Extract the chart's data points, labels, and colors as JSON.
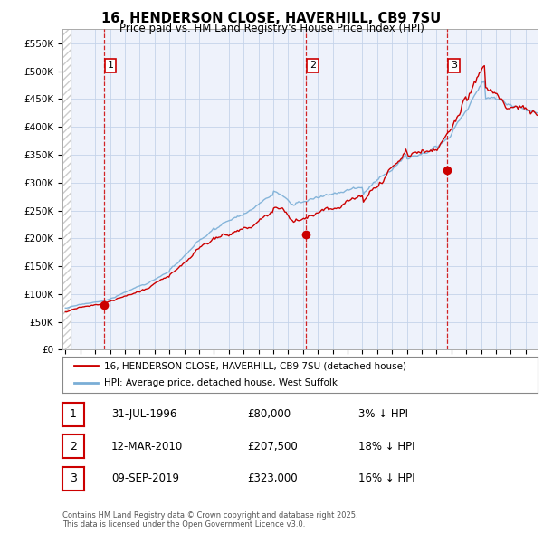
{
  "title": "16, HENDERSON CLOSE, HAVERHILL, CB9 7SU",
  "subtitle": "Price paid vs. HM Land Registry's House Price Index (HPI)",
  "legend_label_red": "16, HENDERSON CLOSE, HAVERHILL, CB9 7SU (detached house)",
  "legend_label_blue": "HPI: Average price, detached house, West Suffolk",
  "footer_line1": "Contains HM Land Registry data © Crown copyright and database right 2025.",
  "footer_line2": "This data is licensed under the Open Government Licence v3.0.",
  "sale_points": [
    {
      "label": "1",
      "date_x": 1996.58,
      "price": 80000
    },
    {
      "label": "2",
      "date_x": 2010.19,
      "price": 207500
    },
    {
      "label": "3",
      "date_x": 2019.69,
      "price": 323000
    }
  ],
  "ylim": [
    0,
    575000
  ],
  "xlim": [
    1993.8,
    2025.8
  ],
  "yticks": [
    0,
    50000,
    100000,
    150000,
    200000,
    250000,
    300000,
    350000,
    400000,
    450000,
    500000,
    550000
  ],
  "ytick_labels": [
    "£0",
    "£50K",
    "£100K",
    "£150K",
    "£200K",
    "£250K",
    "£300K",
    "£350K",
    "£400K",
    "£450K",
    "£500K",
    "£550K"
  ],
  "bg_color": "#eef2fb",
  "grid_color": "#c5d3ea",
  "red_line_color": "#cc0000",
  "blue_line_color": "#7aaed6",
  "dot_color_red": "#cc0000",
  "dashed_line_color": "#cc0000",
  "table_rows": [
    {
      "num": "1",
      "date": "31-JUL-1996",
      "amount": "£80,000",
      "pct": "3% ↓ HPI"
    },
    {
      "num": "2",
      "date": "12-MAR-2010",
      "amount": "£207,500",
      "pct": "18% ↓ HPI"
    },
    {
      "num": "3",
      "date": "09-SEP-2019",
      "amount": "£323,000",
      "pct": "16% ↓ HPI"
    }
  ]
}
